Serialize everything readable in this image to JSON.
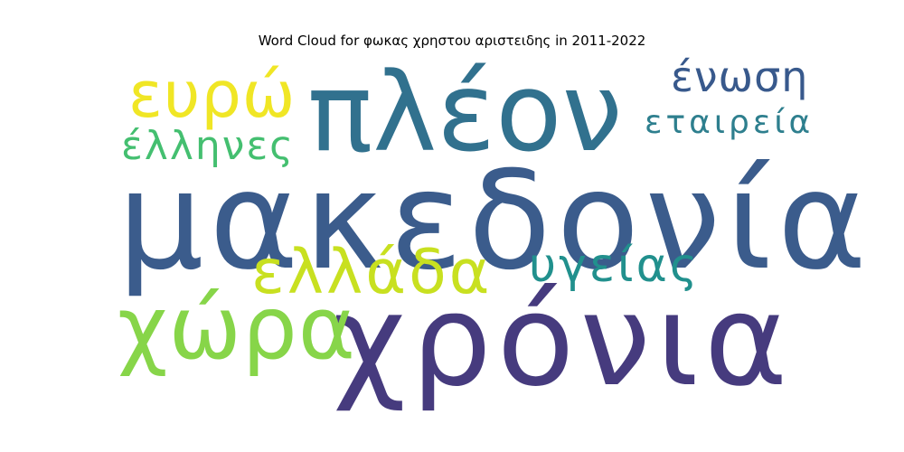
{
  "title": "Word Cloud for φωκας χρηστου αριστειδης in 2011-2022",
  "words": [
    {
      "text": "μακεδονία",
      "color": "#3b5c8c"
    },
    {
      "text": "χρόνια",
      "color": "#463b7e"
    },
    {
      "text": "πλέον",
      "color": "#31718e"
    },
    {
      "text": "χώρα",
      "color": "#87d549"
    },
    {
      "text": "ελλάδα",
      "color": "#c8e020"
    },
    {
      "text": "υγείας",
      "color": "#21908d"
    },
    {
      "text": "ευρώ",
      "color": "#f0e625"
    },
    {
      "text": "έλληνες",
      "color": "#44bf70"
    },
    {
      "text": "ένωση",
      "color": "#38598c"
    },
    {
      "text": "εταιρεία",
      "color": "#2e7f8e"
    }
  ]
}
